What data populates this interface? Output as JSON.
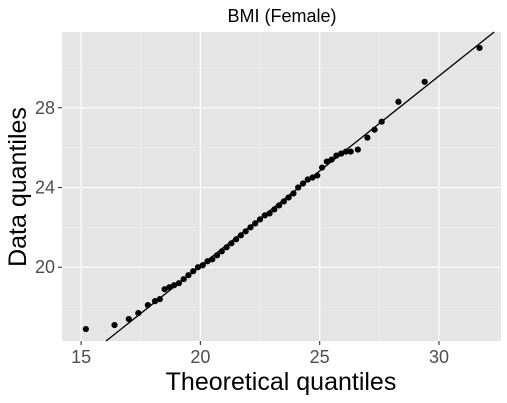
{
  "chart_data": {
    "type": "scatter",
    "title": "BMI (Female)",
    "xlabel": "Theoretical quantiles",
    "ylabel": "Data quantiles",
    "xlim": [
      14.2,
      32.6
    ],
    "ylim": [
      16.3,
      31.8
    ],
    "x_ticks": [
      15,
      20,
      25,
      30
    ],
    "y_ticks": [
      20,
      24,
      28
    ],
    "grid": true,
    "background": "#e5e5e5",
    "point_color": "#000000",
    "reference_line": {
      "x": [
        15.0,
        32.0
      ],
      "y": [
        15.3,
        31.5
      ]
    },
    "points": {
      "x": [
        15.2,
        16.4,
        17.0,
        17.4,
        17.8,
        18.1,
        18.3,
        18.5,
        18.7,
        18.9,
        19.1,
        19.3,
        19.5,
        19.7,
        19.9,
        20.1,
        20.3,
        20.5,
        20.7,
        20.9,
        21.1,
        21.3,
        21.5,
        21.7,
        21.9,
        22.1,
        22.3,
        22.5,
        22.7,
        22.9,
        23.1,
        23.3,
        23.5,
        23.7,
        23.9,
        24.1,
        24.3,
        24.5,
        24.7,
        24.9,
        25.1,
        25.3,
        25.5,
        25.7,
        25.9,
        26.1,
        26.3,
        26.6,
        27.0,
        27.3,
        27.6,
        28.3,
        29.4,
        31.7
      ],
      "y": [
        16.9,
        17.1,
        17.4,
        17.7,
        18.1,
        18.3,
        18.4,
        18.9,
        19.0,
        19.1,
        19.2,
        19.4,
        19.6,
        19.8,
        20.0,
        20.1,
        20.3,
        20.4,
        20.6,
        20.8,
        21.0,
        21.2,
        21.4,
        21.6,
        21.8,
        22.0,
        22.2,
        22.4,
        22.6,
        22.7,
        22.9,
        23.1,
        23.3,
        23.5,
        23.7,
        24.0,
        24.2,
        24.4,
        24.5,
        24.6,
        25.0,
        25.3,
        25.4,
        25.6,
        25.7,
        25.8,
        25.8,
        25.9,
        26.5,
        26.9,
        27.3,
        28.3,
        29.3,
        31.0
      ]
    }
  }
}
